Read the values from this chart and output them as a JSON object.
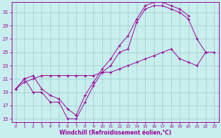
{
  "bg_color": "#c8eeee",
  "grid_color": "#99cccc",
  "line_color": "#990099",
  "xlabel": "Windchill (Refroidissement éolien,°C)",
  "xlim_min": -0.5,
  "xlim_max": 23.5,
  "ylim_min": 14.5,
  "ylim_max": 32.5,
  "xticks": [
    0,
    1,
    2,
    3,
    4,
    5,
    6,
    7,
    8,
    9,
    10,
    11,
    12,
    13,
    14,
    15,
    16,
    17,
    18,
    19,
    20,
    21,
    22,
    23
  ],
  "yticks": [
    15,
    17,
    19,
    21,
    23,
    25,
    27,
    29,
    31
  ],
  "series": [
    {
      "x": [
        0,
        1,
        2,
        3,
        4,
        5,
        6,
        7,
        8,
        9,
        10,
        11,
        12,
        13,
        14,
        15,
        16,
        17,
        18,
        19,
        20,
        21,
        22
      ],
      "y": [
        19.5,
        21.0,
        19.0,
        19.0,
        17.5,
        17.5,
        15.0,
        15.0,
        17.5,
        20.0,
        22.0,
        23.0,
        25.0,
        25.5,
        29.5,
        31.5,
        32.0,
        32.0,
        31.5,
        31.0,
        30.0,
        27.0,
        25.0
      ]
    },
    {
      "x": [
        0,
        1,
        2,
        3,
        4,
        5,
        6,
        7,
        8,
        9,
        10,
        11,
        12,
        13,
        14,
        15,
        16,
        17,
        18,
        19,
        20
      ],
      "y": [
        19.5,
        21.0,
        21.5,
        19.5,
        18.5,
        18.0,
        16.5,
        15.5,
        18.5,
        20.5,
        22.5,
        24.0,
        26.0,
        27.5,
        30.0,
        32.0,
        32.5,
        32.5,
        32.0,
        31.5,
        30.5
      ]
    },
    {
      "x": [
        0,
        1,
        2,
        3,
        4,
        5,
        6,
        7,
        8,
        9,
        10,
        11,
        12,
        13,
        14,
        15,
        16,
        17,
        18,
        19,
        20,
        21,
        22,
        23
      ],
      "y": [
        19.5,
        20.5,
        21.0,
        21.5,
        21.5,
        21.5,
        21.5,
        21.5,
        21.5,
        21.5,
        22.0,
        22.0,
        22.5,
        23.0,
        23.5,
        24.0,
        24.5,
        25.0,
        25.5,
        24.0,
        23.5,
        23.0,
        25.0,
        25.0
      ]
    }
  ]
}
